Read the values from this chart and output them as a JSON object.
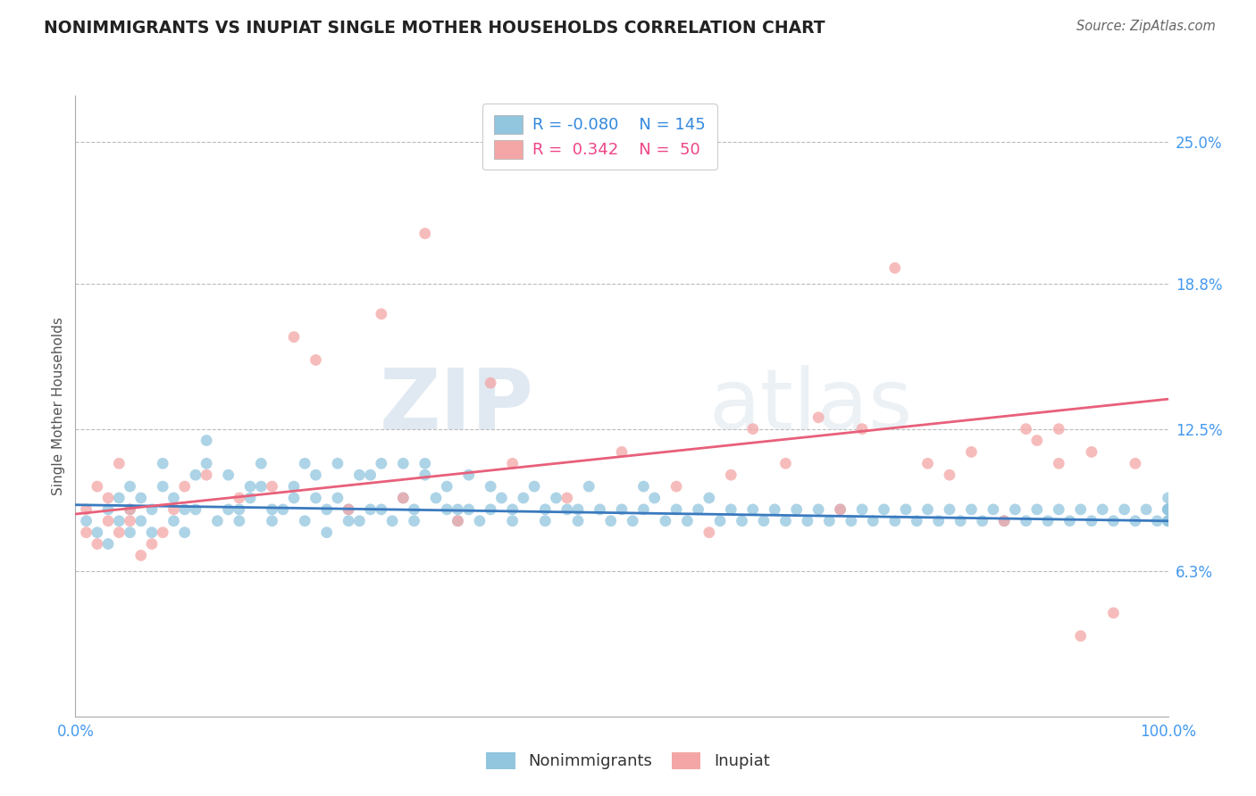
{
  "title": "NONIMMIGRANTS VS INUPIAT SINGLE MOTHER HOUSEHOLDS CORRELATION CHART",
  "source": "Source: ZipAtlas.com",
  "ylabel": "Single Mother Households",
  "xlabel": "",
  "legend_label1": "Nonimmigrants",
  "legend_label2": "Inupiat",
  "legend_r1": "-0.080",
  "legend_n1": "145",
  "legend_r2": "0.342",
  "legend_n2": "50",
  "xlim": [
    0,
    100
  ],
  "ylim": [
    0,
    27
  ],
  "yticks": [
    6.3,
    12.5,
    18.8,
    25.0
  ],
  "xticks": [
    0,
    25,
    50,
    75,
    100
  ],
  "xtick_labels": [
    "0.0%",
    "",
    "",
    "",
    "100.0%"
  ],
  "ytick_labels": [
    "6.3%",
    "12.5%",
    "18.8%",
    "25.0%"
  ],
  "color_blue": "#92c5de",
  "color_pink": "#f4a6a6",
  "line_blue": "#3a7abf",
  "line_pink": "#e8607a",
  "background": "#ffffff",
  "grid_color": "#bbbbbb",
  "watermark_zip": "ZIP",
  "watermark_atlas": "atlas",
  "blue_line_x": [
    0,
    100
  ],
  "blue_line_y": [
    9.2,
    8.5
  ],
  "pink_line_x": [
    0,
    100
  ],
  "pink_line_y": [
    8.8,
    13.8
  ],
  "blue_scatter_x": [
    1,
    2,
    3,
    3,
    4,
    4,
    5,
    5,
    5,
    6,
    6,
    7,
    7,
    8,
    8,
    9,
    9,
    10,
    10,
    11,
    11,
    12,
    12,
    13,
    14,
    14,
    15,
    15,
    16,
    16,
    17,
    17,
    18,
    18,
    19,
    20,
    20,
    21,
    21,
    22,
    22,
    23,
    23,
    24,
    24,
    25,
    25,
    26,
    26,
    27,
    27,
    28,
    28,
    29,
    30,
    30,
    31,
    31,
    32,
    32,
    33,
    34,
    34,
    35,
    35,
    36,
    36,
    37,
    38,
    38,
    39,
    40,
    40,
    41,
    42,
    43,
    43,
    44,
    45,
    46,
    46,
    47,
    48,
    49,
    50,
    51,
    52,
    52,
    53,
    54,
    55,
    56,
    57,
    58,
    59,
    60,
    61,
    62,
    63,
    64,
    65,
    66,
    67,
    68,
    69,
    70,
    71,
    72,
    73,
    74,
    75,
    76,
    77,
    78,
    79,
    80,
    81,
    82,
    83,
    84,
    85,
    86,
    87,
    88,
    89,
    90,
    91,
    92,
    93,
    94,
    95,
    96,
    97,
    98,
    99,
    100,
    100,
    100,
    100,
    100,
    100,
    100,
    100,
    100,
    100
  ],
  "blue_scatter_y": [
    8.5,
    8.0,
    7.5,
    9.0,
    8.5,
    9.5,
    9.0,
    10.0,
    8.0,
    8.5,
    9.5,
    9.0,
    8.0,
    10.0,
    11.0,
    9.5,
    8.5,
    9.0,
    8.0,
    10.5,
    9.0,
    11.0,
    12.0,
    8.5,
    9.0,
    10.5,
    9.0,
    8.5,
    10.0,
    9.5,
    11.0,
    10.0,
    9.0,
    8.5,
    9.0,
    10.0,
    9.5,
    11.0,
    8.5,
    9.5,
    10.5,
    9.0,
    8.0,
    9.5,
    11.0,
    8.5,
    9.0,
    10.5,
    8.5,
    9.0,
    10.5,
    9.0,
    11.0,
    8.5,
    9.5,
    11.0,
    8.5,
    9.0,
    10.5,
    11.0,
    9.5,
    10.0,
    9.0,
    8.5,
    9.0,
    10.5,
    9.0,
    8.5,
    9.0,
    10.0,
    9.5,
    9.0,
    8.5,
    9.5,
    10.0,
    9.0,
    8.5,
    9.5,
    9.0,
    8.5,
    9.0,
    10.0,
    9.0,
    8.5,
    9.0,
    8.5,
    9.0,
    10.0,
    9.5,
    8.5,
    9.0,
    8.5,
    9.0,
    9.5,
    8.5,
    9.0,
    8.5,
    9.0,
    8.5,
    9.0,
    8.5,
    9.0,
    8.5,
    9.0,
    8.5,
    9.0,
    8.5,
    9.0,
    8.5,
    9.0,
    8.5,
    9.0,
    8.5,
    9.0,
    8.5,
    9.0,
    8.5,
    9.0,
    8.5,
    9.0,
    8.5,
    9.0,
    8.5,
    9.0,
    8.5,
    9.0,
    8.5,
    9.0,
    8.5,
    9.0,
    8.5,
    9.0,
    8.5,
    9.0,
    8.5,
    9.0,
    8.5,
    9.0,
    8.5,
    9.0,
    9.5,
    9.0,
    8.5,
    9.0,
    9.0
  ],
  "pink_scatter_x": [
    1,
    1,
    2,
    2,
    3,
    3,
    4,
    4,
    5,
    5,
    6,
    7,
    8,
    9,
    10,
    12,
    15,
    18,
    20,
    22,
    25,
    28,
    30,
    32,
    35,
    38,
    40,
    45,
    50,
    55,
    58,
    60,
    62,
    65,
    68,
    70,
    72,
    75,
    78,
    80,
    82,
    85,
    87,
    88,
    90,
    90,
    92,
    93,
    95,
    97
  ],
  "pink_scatter_y": [
    9.0,
    8.0,
    10.0,
    7.5,
    8.5,
    9.5,
    11.0,
    8.0,
    9.0,
    8.5,
    7.0,
    7.5,
    8.0,
    9.0,
    10.0,
    10.5,
    9.5,
    10.0,
    16.5,
    15.5,
    9.0,
    17.5,
    9.5,
    21.0,
    8.5,
    14.5,
    11.0,
    9.5,
    11.5,
    10.0,
    8.0,
    10.5,
    12.5,
    11.0,
    13.0,
    9.0,
    12.5,
    19.5,
    11.0,
    10.5,
    11.5,
    8.5,
    12.5,
    12.0,
    11.0,
    12.5,
    3.5,
    11.5,
    4.5,
    11.0
  ]
}
